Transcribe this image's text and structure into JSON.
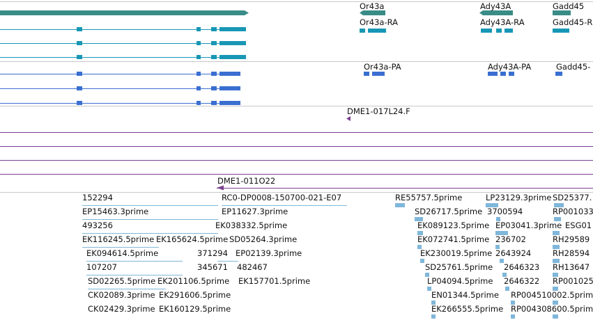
{
  "colors": {
    "gene": "#3a8c86",
    "transcript_rna": "#1897b5",
    "transcript_pa": "#3a6fd1",
    "clone": "#7c3f8e",
    "est": "#7fb7da",
    "separator": "#c8c8c8"
  },
  "gene_labels": [
    "Or43a",
    "Ady43A",
    "Gadd45"
  ],
  "rna_labels": [
    "Or43a-RA",
    "Ady43A-RA",
    "Gadd45-R"
  ],
  "protein_labels": [
    "Or43a-PA",
    "Ady43A-PA",
    "Gadd45-"
  ],
  "clone_labels": [
    "DME1-017L24.F",
    "DME1-011O22"
  ],
  "est_labels": [
    "152294",
    "RC0-DP0008-150700-021-E07",
    "RE55757.5prime",
    "LP23129.3prime",
    "SD25377.",
    "EP15463.3prime",
    "EP11627.3prime",
    "SD26717.5prime",
    "3700594",
    "RP001033",
    "493256",
    "EK038332.5prime",
    "EK089123.5prime",
    "EP03041.3prime",
    "ESG01",
    "EK116245.5prime",
    "EK165624.5prime",
    "SD05264.3prime",
    "EK072741.5prime",
    "236702",
    "RH29589",
    "EK094614.5prime",
    "371294",
    "EP02139.3prime",
    "EK230019.5prime",
    "2643924",
    "RH28594",
    "107207",
    "345671",
    "482467",
    "SD25761.5prime",
    "2646323",
    "RH13647",
    "SD02265.5prime",
    "EK201106.5prime",
    "EK157701.5prime",
    "LP04094.5prime",
    "2646322",
    "RP001025",
    "CK02089.3prime",
    "EK291606.5prime",
    "EN01344.5prime",
    "RP004510002.5prim",
    "CK02429.3prime",
    "EK160129.5prime",
    "EK266555.5prime",
    "RP004308600.5prim"
  ]
}
